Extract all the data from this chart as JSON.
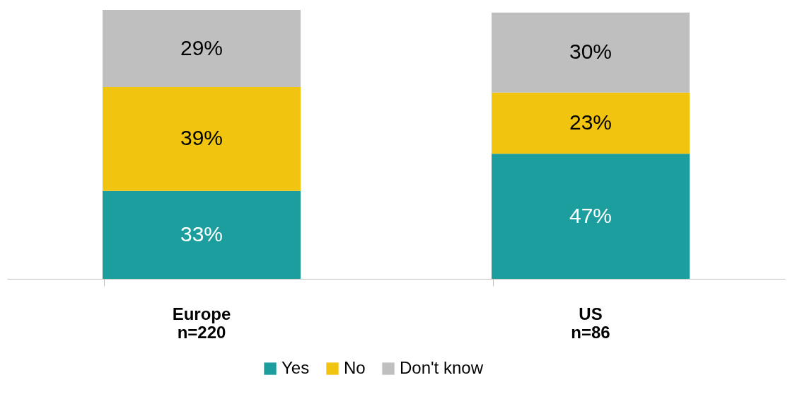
{
  "chart_data": {
    "type": "bar",
    "stacked": true,
    "categories": [
      "Europe\nn=220",
      "US\nn=86"
    ],
    "series": [
      {
        "name": "Yes",
        "color": "#1c9e9e",
        "values": [
          33,
          47
        ],
        "value_labels": [
          "33%",
          "47%"
        ]
      },
      {
        "name": "No",
        "color": "#f1c40f",
        "values": [
          39,
          23
        ],
        "value_labels": [
          "39%",
          "23%"
        ]
      },
      {
        "name": "Don't know",
        "color": "#bfbfbf",
        "values": [
          29,
          30
        ],
        "value_labels": [
          "29%",
          "30%"
        ]
      }
    ],
    "legend": "bottom"
  }
}
